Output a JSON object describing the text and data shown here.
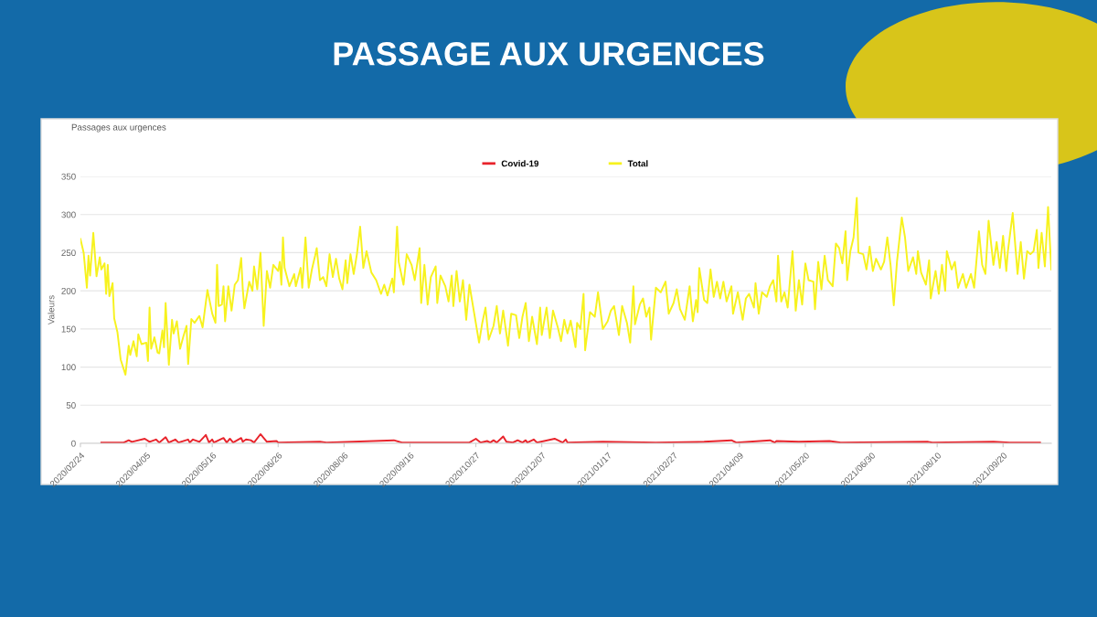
{
  "chart_data": {
    "type": "line",
    "title": "PASSAGE AUX URGENCES",
    "subtitle": "Passages aux urgences",
    "ylabel": "Valeurs",
    "xlim": [
      "2020-02-24",
      "2021-10-20"
    ],
    "ylim": [
      0,
      350
    ],
    "yticks": [
      0,
      50,
      100,
      150,
      200,
      250,
      300,
      350
    ],
    "xticks": [
      {
        "value": "2020-02-24",
        "label": "2020/02/24"
      },
      {
        "value": "2020-04-05",
        "label": "2020/04/05"
      },
      {
        "value": "2020-05-16",
        "label": "2020/05/16"
      },
      {
        "value": "2020-06-26",
        "label": "2020/06/26"
      },
      {
        "value": "2020-08-06",
        "label": "2020/08/06"
      },
      {
        "value": "2020-09-16",
        "label": "2020/09/16"
      },
      {
        "value": "2020-10-27",
        "label": "2020/10/27"
      },
      {
        "value": "2020-12-07",
        "label": "2020/12/07"
      },
      {
        "value": "2021-01-17",
        "label": "2021/01/17"
      },
      {
        "value": "2021-02-27",
        "label": "2021/02/27"
      },
      {
        "value": "2021-04-09",
        "label": "2021/04/09"
      },
      {
        "value": "2021-05-20",
        "label": "2021/05/20"
      },
      {
        "value": "2021-06-30",
        "label": "2021/06/30"
      },
      {
        "value": "2021-08-10",
        "label": "2021/08/10"
      },
      {
        "value": "2021-09-20",
        "label": "2021/09/20"
      }
    ],
    "grid": "y",
    "legend": "top",
    "marker": "none",
    "line_style": "solid",
    "series": [
      {
        "name": "Covid-19",
        "color": "#e8232b",
        "x": [
          "2020-03-08",
          "2020-03-22",
          "2020-03-25",
          "2020-03-27",
          "2020-04-04",
          "2020-04-07",
          "2020-04-11",
          "2020-04-13",
          "2020-04-17",
          "2020-04-19",
          "2020-04-23",
          "2020-04-25",
          "2020-05-01",
          "2020-05-02",
          "2020-05-04",
          "2020-05-08",
          "2020-05-12",
          "2020-05-14",
          "2020-05-16",
          "2020-05-17",
          "2020-05-23",
          "2020-05-25",
          "2020-05-27",
          "2020-05-29",
          "2020-06-03",
          "2020-06-04",
          "2020-06-06",
          "2020-06-09",
          "2020-06-11",
          "2020-06-15",
          "2020-06-19",
          "2020-06-25",
          "2020-06-26",
          "2020-07-22",
          "2020-07-26",
          "2020-09-06",
          "2020-09-11",
          "2020-10-23",
          "2020-10-27",
          "2020-10-30",
          "2020-11-03",
          "2020-11-05",
          "2020-11-07",
          "2020-11-09",
          "2020-11-13",
          "2020-11-15",
          "2020-11-19",
          "2020-11-22",
          "2020-11-25",
          "2020-11-27",
          "2020-11-28",
          "2020-12-02",
          "2020-12-04",
          "2020-12-15",
          "2020-12-20",
          "2020-12-22",
          "2020-12-23",
          "2021-01-14",
          "2021-02-16",
          "2021-03-18",
          "2021-04-04",
          "2021-04-07",
          "2021-04-28",
          "2021-05-01",
          "2021-05-02",
          "2021-05-16",
          "2021-06-04",
          "2021-06-11",
          "2021-08-04",
          "2021-08-07",
          "2021-09-14",
          "2021-09-24",
          "2021-10-13"
        ],
        "values": [
          1,
          1,
          4,
          2,
          6,
          2,
          5,
          1,
          8,
          1,
          5,
          1,
          5,
          1,
          5,
          2,
          11,
          1,
          5,
          1,
          7,
          1,
          6,
          1,
          7,
          2,
          5,
          4,
          1,
          12,
          2,
          3,
          1,
          2,
          1,
          4,
          1,
          1,
          6,
          1,
          3,
          1,
          4,
          1,
          9,
          2,
          1,
          4,
          1,
          4,
          1,
          5,
          1,
          6,
          1,
          5,
          1,
          2,
          1,
          2,
          4,
          1,
          4,
          1,
          3,
          2,
          3,
          1,
          2,
          1,
          2,
          1,
          1
        ]
      },
      {
        "name": "Total",
        "color": "#f7f21e",
        "x": [
          "2020-02-24",
          "2020-02-26",
          "2020-02-28",
          "2020-02-29",
          "2020-03-01",
          "2020-03-03",
          "2020-03-05",
          "2020-03-07",
          "2020-03-08",
          "2020-03-10",
          "2020-03-11",
          "2020-03-12",
          "2020-03-13",
          "2020-03-15",
          "2020-03-16",
          "2020-03-18",
          "2020-03-20",
          "2020-03-23",
          "2020-03-25",
          "2020-03-26",
          "2020-03-28",
          "2020-03-30",
          "2020-03-31",
          "2020-04-02",
          "2020-04-05",
          "2020-04-06",
          "2020-04-07",
          "2020-04-08",
          "2020-04-10",
          "2020-04-12",
          "2020-04-13",
          "2020-04-15",
          "2020-04-16",
          "2020-04-17",
          "2020-04-19",
          "2020-04-21",
          "2020-04-22",
          "2020-04-24",
          "2020-04-26",
          "2020-04-28",
          "2020-04-30",
          "2020-05-01",
          "2020-05-03",
          "2020-05-05",
          "2020-05-08",
          "2020-05-10",
          "2020-05-13",
          "2020-05-16",
          "2020-05-18",
          "2020-05-19",
          "2020-05-20",
          "2020-05-22",
          "2020-05-23",
          "2020-05-24",
          "2020-05-26",
          "2020-05-28",
          "2020-05-30",
          "2020-06-01",
          "2020-06-03",
          "2020-06-04",
          "2020-06-05",
          "2020-06-08",
          "2020-06-10",
          "2020-06-11",
          "2020-06-13",
          "2020-06-15",
          "2020-06-17",
          "2020-06-19",
          "2020-06-21",
          "2020-06-23",
          "2020-06-26",
          "2020-06-27",
          "2020-06-28",
          "2020-06-29",
          "2020-06-30",
          "2020-07-03",
          "2020-07-06",
          "2020-07-07",
          "2020-07-10",
          "2020-07-11",
          "2020-07-13",
          "2020-07-15",
          "2020-07-17",
          "2020-07-19",
          "2020-07-20",
          "2020-07-22",
          "2020-07-24",
          "2020-07-26",
          "2020-07-28",
          "2020-07-30",
          "2020-08-01",
          "2020-08-03",
          "2020-08-05",
          "2020-08-07",
          "2020-08-08",
          "2020-08-10",
          "2020-08-12",
          "2020-08-14",
          "2020-08-16",
          "2020-08-18",
          "2020-08-20",
          "2020-08-23",
          "2020-08-26",
          "2020-08-29",
          "2020-08-31",
          "2020-09-02",
          "2020-09-05",
          "2020-09-06",
          "2020-09-08",
          "2020-09-09",
          "2020-09-12",
          "2020-09-14",
          "2020-09-17",
          "2020-09-19",
          "2020-09-22",
          "2020-09-23",
          "2020-09-25",
          "2020-09-27",
          "2020-09-29",
          "2020-10-02",
          "2020-10-03",
          "2020-10-05",
          "2020-10-08",
          "2020-10-10",
          "2020-10-12",
          "2020-10-13",
          "2020-10-15",
          "2020-10-17",
          "2020-10-19",
          "2020-10-21",
          "2020-10-23",
          "2020-10-26",
          "2020-10-29",
          "2020-10-31",
          "2020-11-02",
          "2020-11-04",
          "2020-11-07",
          "2020-11-09",
          "2020-11-11",
          "2020-11-13",
          "2020-11-16",
          "2020-11-18",
          "2020-11-21",
          "2020-11-23",
          "2020-11-25",
          "2020-11-27",
          "2020-11-29",
          "2020-12-01",
          "2020-12-04",
          "2020-12-06",
          "2020-12-07",
          "2020-12-10",
          "2020-12-12",
          "2020-12-14",
          "2020-12-17",
          "2020-12-19",
          "2020-12-21",
          "2020-12-23",
          "2020-12-25",
          "2020-12-28",
          "2020-12-29",
          "2020-12-31",
          "2021-01-02",
          "2021-01-03",
          "2021-01-06",
          "2021-01-09",
          "2021-01-11",
          "2021-01-14",
          "2021-01-17",
          "2021-01-19",
          "2021-01-21",
          "2021-01-24",
          "2021-01-26",
          "2021-01-29",
          "2021-01-31",
          "2021-02-02",
          "2021-02-03",
          "2021-02-06",
          "2021-02-08",
          "2021-02-10",
          "2021-02-12",
          "2021-02-13",
          "2021-02-16",
          "2021-02-19",
          "2021-02-22",
          "2021-02-24",
          "2021-02-27",
          "2021-03-01",
          "2021-03-03",
          "2021-03-06",
          "2021-03-09",
          "2021-03-11",
          "2021-03-13",
          "2021-03-14",
          "2021-03-15",
          "2021-03-18",
          "2021-03-20",
          "2021-03-22",
          "2021-03-24",
          "2021-03-26",
          "2021-03-28",
          "2021-03-30",
          "2021-04-01",
          "2021-04-04",
          "2021-04-05",
          "2021-04-08",
          "2021-04-11",
          "2021-04-13",
          "2021-04-15",
          "2021-04-18",
          "2021-04-19",
          "2021-04-21",
          "2021-04-23",
          "2021-04-26",
          "2021-04-28",
          "2021-04-30",
          "2021-05-02",
          "2021-05-03",
          "2021-05-05",
          "2021-05-07",
          "2021-05-09",
          "2021-05-12",
          "2021-05-14",
          "2021-05-16",
          "2021-05-18",
          "2021-05-20",
          "2021-05-22",
          "2021-05-25",
          "2021-05-26",
          "2021-05-28",
          "2021-05-30",
          "2021-06-01",
          "2021-06-03",
          "2021-06-06",
          "2021-06-08",
          "2021-06-10",
          "2021-06-12",
          "2021-06-14",
          "2021-06-15",
          "2021-06-17",
          "2021-06-19",
          "2021-06-21",
          "2021-06-22",
          "2021-06-25",
          "2021-06-27",
          "2021-06-29",
          "2021-07-01",
          "2021-07-03",
          "2021-07-06",
          "2021-07-08",
          "2021-07-10",
          "2021-07-12",
          "2021-07-14",
          "2021-07-16",
          "2021-07-19",
          "2021-07-21",
          "2021-07-23",
          "2021-07-26",
          "2021-07-28",
          "2021-07-29",
          "2021-07-31",
          "2021-08-03",
          "2021-08-05",
          "2021-08-06",
          "2021-08-09",
          "2021-08-11",
          "2021-08-13",
          "2021-08-15",
          "2021-08-16",
          "2021-08-19",
          "2021-08-21",
          "2021-08-23",
          "2021-08-26",
          "2021-08-28",
          "2021-08-31",
          "2021-09-02",
          "2021-09-05",
          "2021-09-07",
          "2021-09-09",
          "2021-09-11",
          "2021-09-14",
          "2021-09-16",
          "2021-09-18",
          "2021-09-20",
          "2021-09-22",
          "2021-09-23",
          "2021-09-26",
          "2021-09-29",
          "2021-10-01",
          "2021-10-03",
          "2021-10-05",
          "2021-10-07",
          "2021-10-09",
          "2021-10-11",
          "2021-10-12",
          "2021-10-14",
          "2021-10-16",
          "2021-10-18",
          "2021-10-20"
        ],
        "values": [
          268,
          250,
          204,
          246,
          220,
          276,
          219,
          244,
          228,
          236,
          196,
          234,
          193,
          210,
          164,
          146,
          110,
          90,
          128,
          116,
          134,
          114,
          143,
          130,
          132,
          108,
          178,
          124,
          139,
          119,
          118,
          148,
          126,
          184,
          103,
          162,
          144,
          160,
          124,
          140,
          154,
          104,
          163,
          158,
          167,
          152,
          201,
          170,
          158,
          234,
          180,
          182,
          206,
          160,
          206,
          174,
          208,
          214,
          243,
          202,
          177,
          212,
          200,
          232,
          202,
          250,
          154,
          226,
          204,
          234,
          226,
          238,
          208,
          270,
          230,
          206,
          222,
          206,
          230,
          204,
          270,
          204,
          228,
          246,
          256,
          214,
          218,
          206,
          248,
          218,
          242,
          216,
          202,
          240,
          210,
          248,
          222,
          248,
          284,
          230,
          252,
          224,
          214,
          196,
          208,
          194,
          216,
          198,
          284,
          238,
          208,
          248,
          234,
          214,
          256,
          184,
          234,
          182,
          218,
          232,
          184,
          220,
          206,
          186,
          220,
          180,
          226,
          186,
          214,
          162,
          208,
          170,
          132,
          158,
          178,
          136,
          154,
          180,
          144,
          174,
          128,
          170,
          168,
          138,
          166,
          184,
          134,
          166,
          130,
          178,
          142,
          178,
          138,
          174,
          152,
          134,
          162,
          144,
          161,
          126,
          158,
          150,
          196,
          122,
          172,
          166,
          198,
          150,
          160,
          174,
          180,
          142,
          180,
          158,
          132,
          206,
          156,
          182,
          190,
          166,
          178,
          136,
          204,
          198,
          212,
          170,
          184,
          202,
          176,
          162,
          206,
          160,
          188,
          172,
          230,
          188,
          184,
          228,
          192,
          212,
          190,
          212,
          186,
          206,
          170,
          198,
          162,
          190,
          196,
          178,
          210,
          170,
          198,
          192,
          206,
          214,
          186,
          246,
          186,
          198,
          178,
          252,
          174,
          214,
          182,
          236,
          214,
          212,
          176,
          238,
          202,
          246,
          214,
          206,
          262,
          256,
          236,
          278,
          214,
          252,
          270,
          322,
          250,
          248,
          228,
          258,
          226,
          242,
          228,
          238,
          270,
          234,
          181,
          238,
          296,
          270,
          226,
          244,
          222,
          252,
          224,
          208,
          240,
          190,
          226,
          196,
          234,
          200,
          252,
          228,
          238,
          204,
          222,
          204,
          222,
          204,
          278,
          234,
          222,
          292,
          234,
          264,
          230,
          272,
          226,
          252,
          302,
          222,
          264,
          216,
          252,
          248,
          252,
          280,
          230,
          276,
          232,
          310,
          228
        ]
      }
    ]
  }
}
